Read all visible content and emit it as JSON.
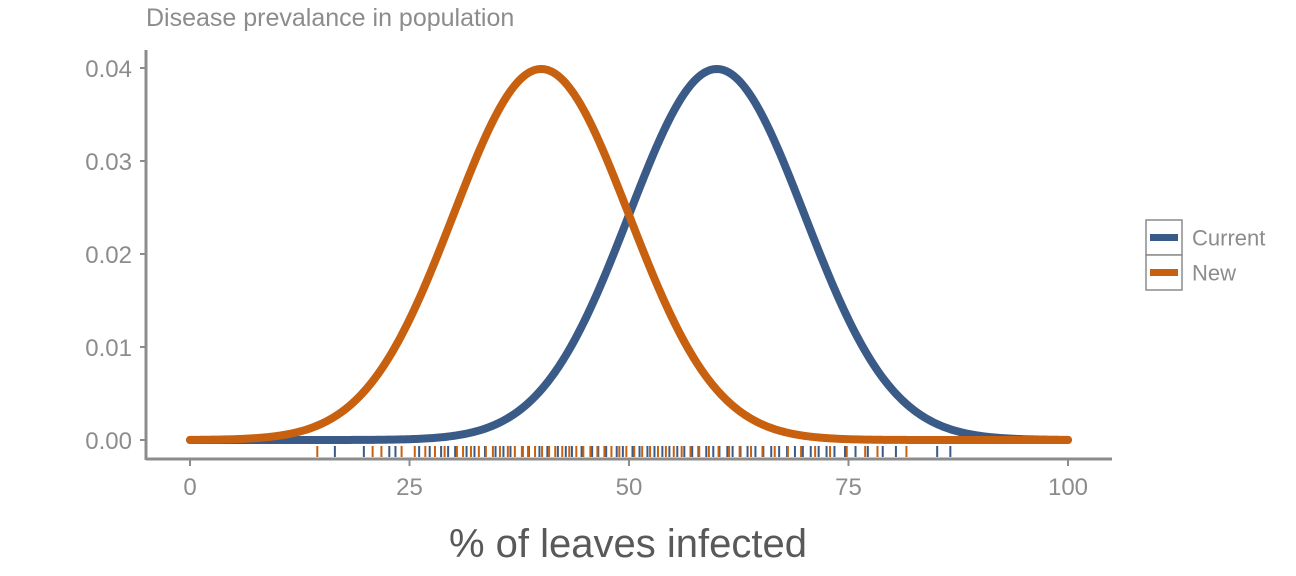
{
  "chart_data": {
    "type": "line",
    "title": "Disease prevalance in population",
    "xlabel": "% of leaves infected",
    "ylabel": "",
    "xlim": [
      0,
      100
    ],
    "ylim": [
      0,
      0.04
    ],
    "xticks": [
      0,
      25,
      50,
      75,
      100
    ],
    "xtick_labels": [
      "0",
      "25",
      "50",
      "75",
      "100"
    ],
    "yticks": [
      0,
      0.01,
      0.02,
      0.03,
      0.04
    ],
    "ytick_labels": [
      "0.00",
      "0.01",
      "0.02",
      "0.03",
      "0.04"
    ],
    "legend_position": "right",
    "series": [
      {
        "name": "Current",
        "color": "#3a5a87",
        "distribution": "normal",
        "mean": 60,
        "sd": 10,
        "rug": [
          16.5,
          19.8,
          22.7,
          23.4,
          26.1,
          27.3,
          28.6,
          29.4,
          30.2,
          31.5,
          32.4,
          33.6,
          34.8,
          35.7,
          36.5,
          37.9,
          38.6,
          39.8,
          40.7,
          41.9,
          42.8,
          43.5,
          44.6,
          45.8,
          46.5,
          47.4,
          48.6,
          49.3,
          50.4,
          51.2,
          52.1,
          52.9,
          53.8,
          54.6,
          55.5,
          56.3,
          57.2,
          57.9,
          58.8,
          59.6,
          60.3,
          61.2,
          61.8,
          62.7,
          63.5,
          64.4,
          65.3,
          66.2,
          67.1,
          68.0,
          68.9,
          69.8,
          70.7,
          71.6,
          72.5,
          73.4,
          74.6,
          75.8,
          77.2,
          78.9,
          80.4,
          85.1,
          86.6
        ]
      },
      {
        "name": "New",
        "color": "#c8610f",
        "distribution": "normal",
        "mean": 40,
        "sd": 10,
        "rug": [
          14.5,
          20.8,
          21.8,
          24.1,
          25.6,
          26.8,
          27.9,
          29.0,
          30.4,
          31.1,
          32.0,
          32.9,
          33.7,
          34.5,
          35.3,
          36.2,
          37.0,
          37.8,
          38.5,
          39.3,
          40.1,
          40.9,
          41.6,
          42.4,
          43.2,
          44.0,
          44.8,
          45.6,
          46.4,
          47.2,
          48.0,
          48.9,
          49.7,
          50.6,
          51.5,
          52.4,
          53.3,
          54.2,
          55.1,
          56.0,
          57.0,
          58.0,
          59.1,
          60.2,
          61.4,
          62.6,
          63.9,
          65.2,
          66.6,
          68.1,
          69.6,
          71.2,
          72.9,
          74.8,
          76.9,
          78.3,
          81.6
        ]
      }
    ]
  }
}
